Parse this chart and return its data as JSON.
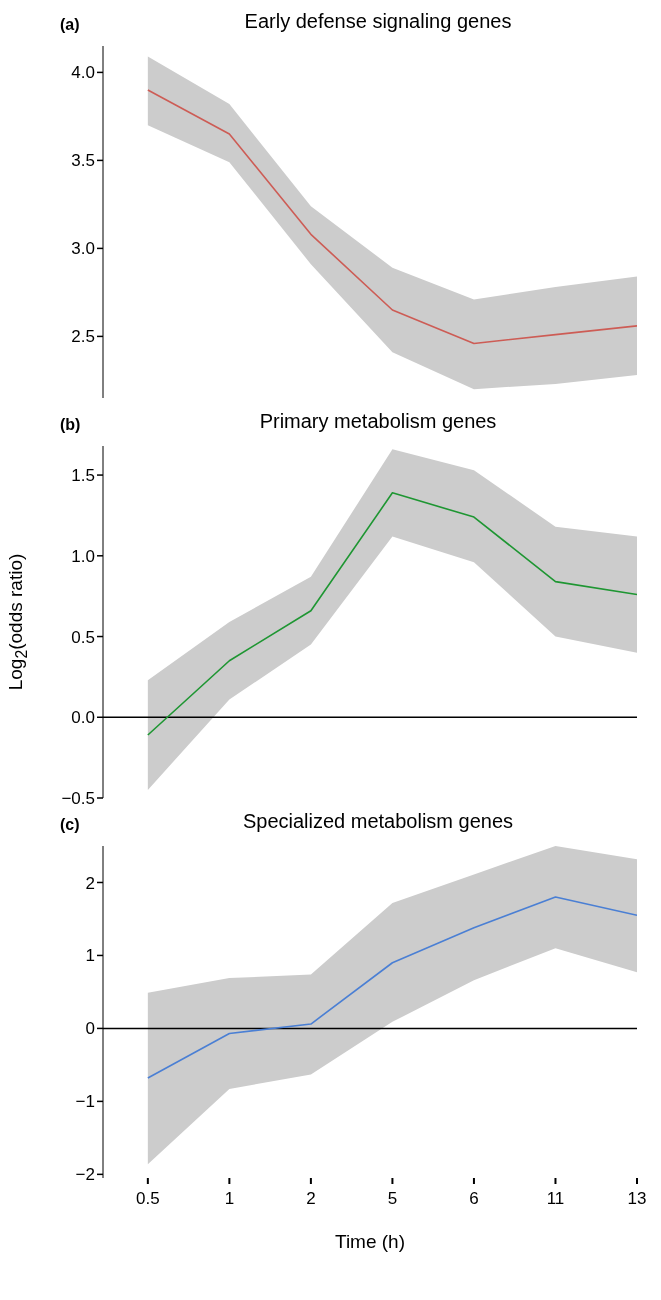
{
  "chart_data": [
    {
      "type": "line",
      "title": "Early defense signaling genes",
      "annotations": [
        "(a)"
      ],
      "categories": [
        "0.5",
        "1",
        "2",
        "5",
        "6",
        "11",
        "13"
      ],
      "series": [
        {
          "color": "#cd5c55",
          "values": [
            3.9,
            3.65,
            3.08,
            2.65,
            2.46,
            2.51,
            2.56
          ],
          "lower": [
            3.7,
            3.49,
            2.91,
            2.41,
            2.2,
            2.23,
            2.28
          ],
          "upper": [
            4.09,
            3.82,
            3.24,
            2.89,
            2.71,
            2.78,
            2.84
          ]
        }
      ],
      "ylim": [
        2.15,
        4.15
      ],
      "yticks": [
        {
          "value": 2.5,
          "label": "2.5"
        },
        {
          "value": 3,
          "label": "3.0"
        },
        {
          "value": 3.5,
          "label": "3.5"
        },
        {
          "value": 4,
          "label": "4.0"
        }
      ],
      "tick_labels": "y",
      "grid": false,
      "legend": false
    },
    {
      "type": "line",
      "title": "Primary metabolism genes",
      "annotations": [
        "(b)"
      ],
      "ylabel": "Log$_{2}$(odds ratio)",
      "categories": [
        "0.5",
        "1",
        "2",
        "5",
        "6",
        "11",
        "13"
      ],
      "series": [
        {
          "color": "#1e9632",
          "values": [
            -0.11,
            0.35,
            0.66,
            1.39,
            1.24,
            0.84,
            0.76
          ],
          "lower": [
            -0.45,
            0.11,
            0.45,
            1.12,
            0.96,
            0.5,
            0.4
          ],
          "upper": [
            0.23,
            0.59,
            0.87,
            1.66,
            1.53,
            1.18,
            1.12
          ]
        }
      ],
      "ylim": [
        -0.5,
        1.68
      ],
      "yticks": [
        {
          "value": -0.5,
          "label": "−0.5"
        },
        {
          "value": 0,
          "label": "0.0"
        },
        {
          "value": 0.5,
          "label": "0.5"
        },
        {
          "value": 1,
          "label": "1.0"
        },
        {
          "value": 1.5,
          "label": "1.5"
        }
      ],
      "tick_labels": "y",
      "grid": false,
      "legend": false,
      "ref_lines": [
        {
          "axis": "y",
          "value": 0,
          "color": "#000000"
        }
      ]
    },
    {
      "type": "line",
      "title": "Specialized metabolism genes",
      "annotations": [
        "(c)"
      ],
      "xlabel": "Time (h)",
      "categories": [
        "0.5",
        "1",
        "2",
        "5",
        "6",
        "11",
        "13"
      ],
      "series": [
        {
          "color": "#4a7fd4",
          "values": [
            -0.68,
            -0.07,
            0.06,
            0.9,
            1.38,
            1.8,
            1.55
          ],
          "lower": [
            -1.86,
            -0.83,
            -0.63,
            0.09,
            0.66,
            1.1,
            0.77
          ],
          "upper": [
            0.49,
            0.69,
            0.74,
            1.72,
            2.11,
            2.5,
            2.32
          ]
        }
      ],
      "ylim": [
        -2.05,
        2.5
      ],
      "yticks": [
        {
          "value": -2,
          "label": "−2"
        },
        {
          "value": -1,
          "label": "−1"
        },
        0,
        1,
        2
      ],
      "grid": false,
      "legend": false,
      "ref_lines": [
        {
          "axis": "y",
          "value": 0,
          "color": "#000000"
        }
      ]
    }
  ]
}
